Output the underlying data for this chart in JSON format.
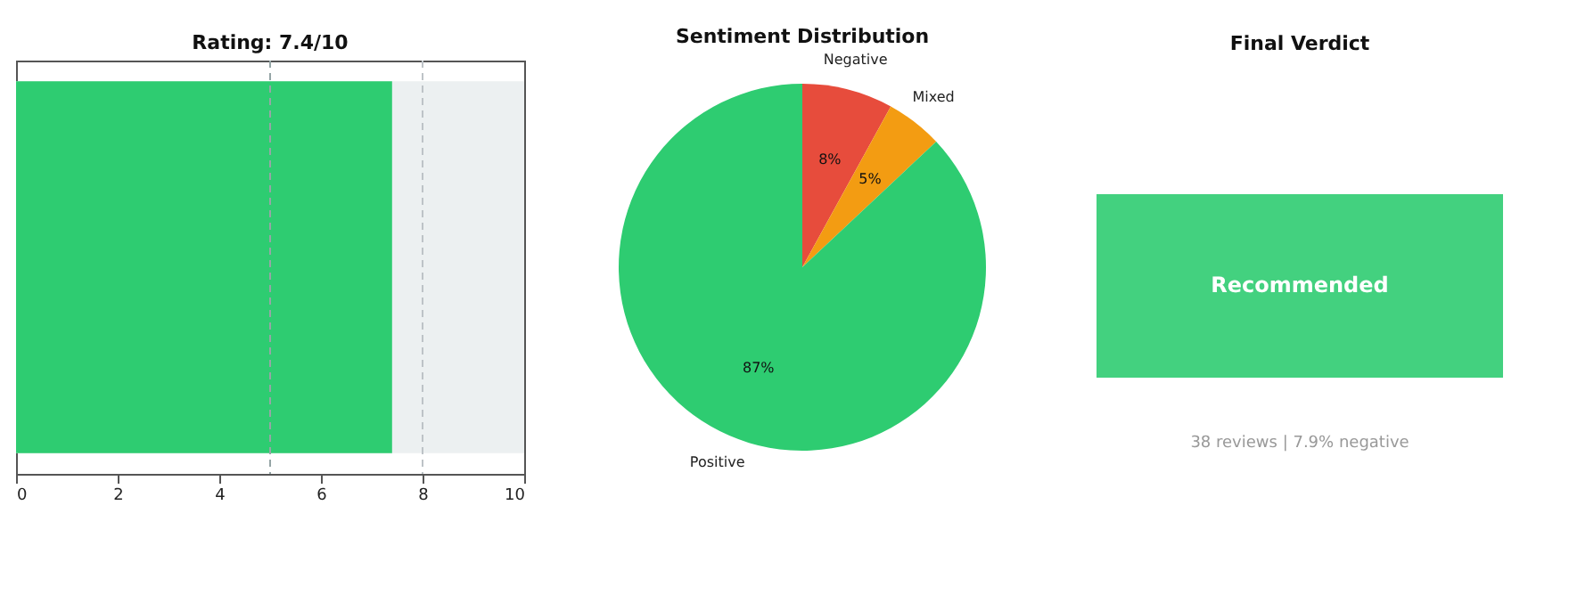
{
  "chart_data": [
    {
      "type": "bar",
      "orientation": "horizontal",
      "title": "Rating: 7.4/10",
      "categories": [
        null
      ],
      "values": [
        7.4
      ],
      "color": "#2ecc71",
      "xlim": [
        0,
        10
      ],
      "xticks": [
        0,
        2,
        4,
        6,
        8,
        10
      ],
      "bands": [
        {
          "axis": "x",
          "from": 0,
          "to": 10,
          "color": "#ecf0f1"
        }
      ],
      "ref_lines": [
        {
          "axis": "x",
          "value": 5,
          "color": "#95a5a6",
          "line_style": "dashed"
        },
        {
          "axis": "x",
          "value": 8,
          "color": "#bdc3c7",
          "line_style": "dashed"
        }
      ]
    },
    {
      "type": "pie",
      "title": "Sentiment Distribution",
      "categories": [
        "Negative",
        "Mixed",
        "Positive"
      ],
      "values": [
        8,
        5,
        87
      ],
      "colors": [
        "#e74c3c",
        "#f39c12",
        "#2ecc71"
      ],
      "value_labels": [
        "8%",
        "5%",
        "87%"
      ]
    },
    {
      "type": "other",
      "title": "Final Verdict",
      "categories": [
        "Recommended"
      ],
      "colors": [
        "#43d17f"
      ],
      "annotations": [
        "38 reviews | 7.9% negative"
      ]
    }
  ]
}
